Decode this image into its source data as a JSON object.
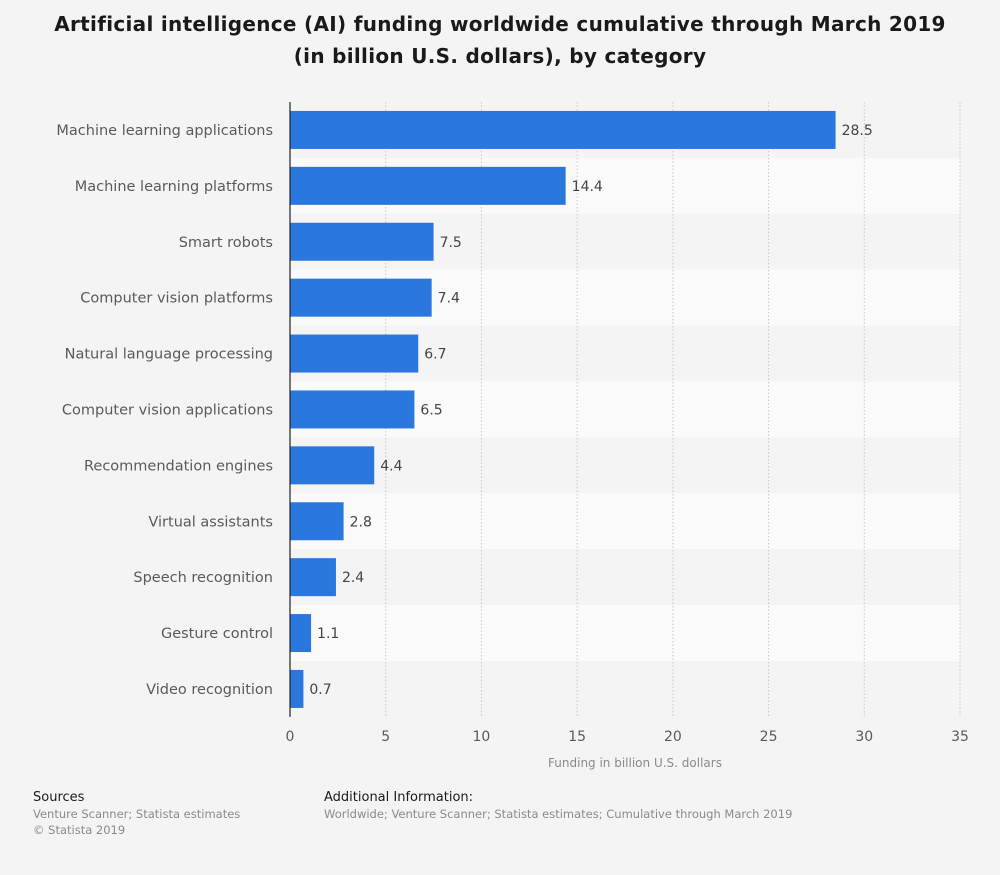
{
  "chart_data": {
    "type": "bar",
    "orientation": "horizontal",
    "title": "Artificial intelligence (AI) funding worldwide cumulative through March 2019 (in billion U.S. dollars), by category",
    "xlabel": "Funding in billion U.S. dollars",
    "ylabel": "",
    "xlim": [
      0,
      35
    ],
    "xticks": [
      0,
      5,
      10,
      15,
      20,
      25,
      30,
      35
    ],
    "grid": true,
    "bar_color": "#2a77de",
    "categories": [
      "Machine learning applications",
      "Machine learning platforms",
      "Smart robots",
      "Computer vision platforms",
      "Natural language processing",
      "Computer vision applications",
      "Recommendation engines",
      "Virtual assistants",
      "Speech recognition",
      "Gesture control",
      "Video recognition"
    ],
    "values": [
      28.5,
      14.4,
      7.5,
      7.4,
      6.7,
      6.5,
      4.4,
      2.8,
      2.4,
      1.1,
      0.7
    ],
    "value_labels": [
      "28.5",
      "14.4",
      "7.5",
      "7.4",
      "6.7",
      "6.5",
      "4.4",
      "2.8",
      "2.4",
      "1.1",
      "0.7"
    ]
  },
  "footer": {
    "sources_heading": "Sources",
    "sources_text": "Venture Scanner; Statista estimates",
    "copyright": "© Statista 2019",
    "additional_heading": "Additional Information:",
    "additional_text": "Worldwide; Venture Scanner; Statista estimates; Cumulative through March 2019"
  }
}
